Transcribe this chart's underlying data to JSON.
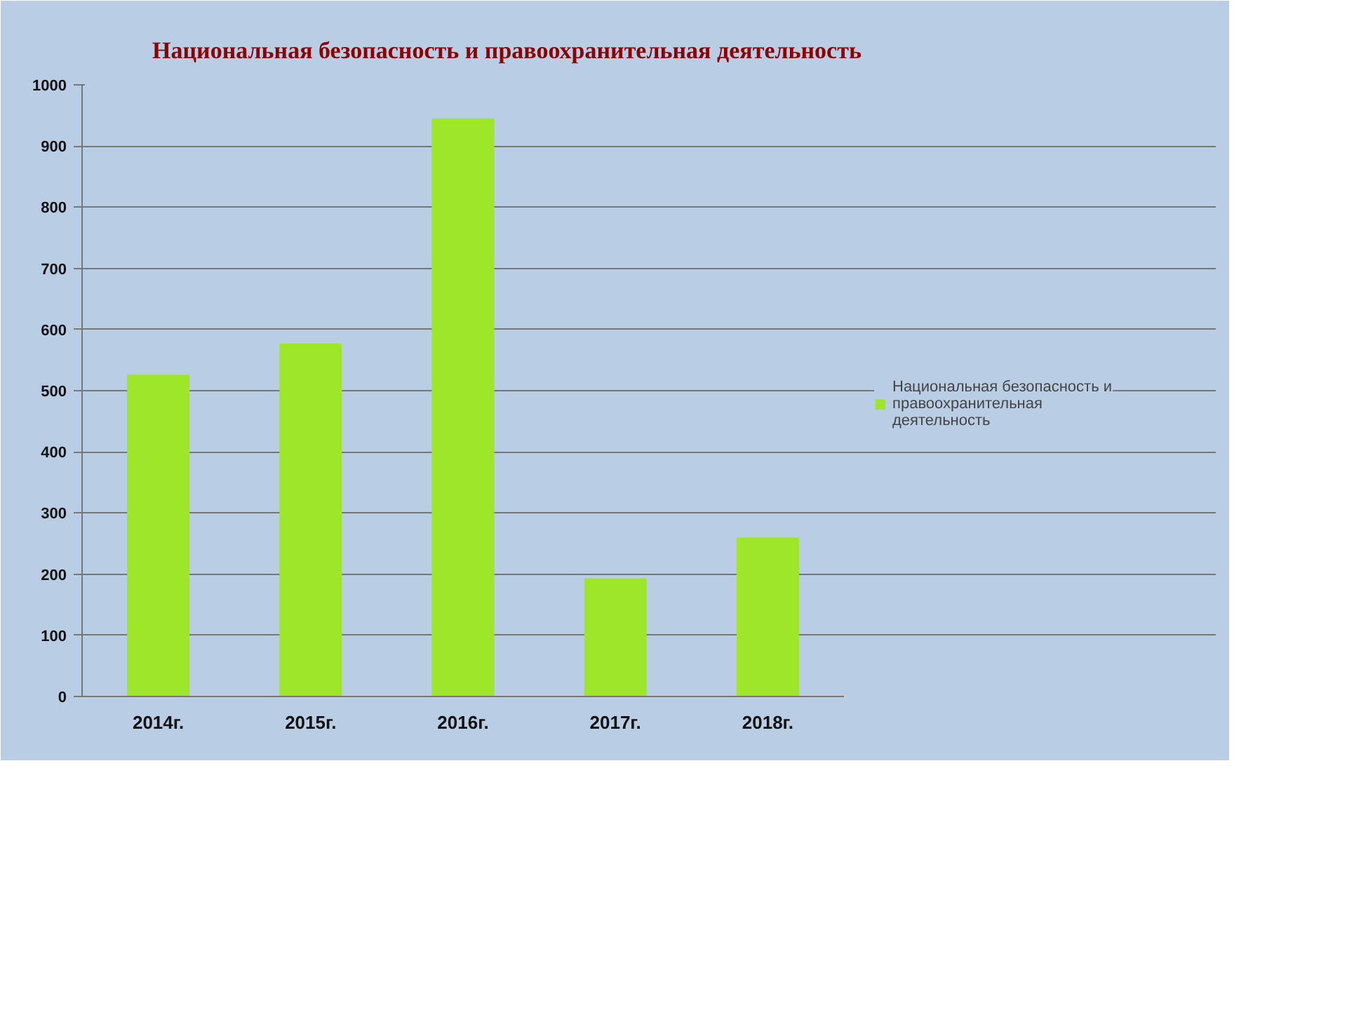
{
  "chart_data": {
    "type": "bar",
    "title": "Национальная безопасность и правоохранительная деятельность",
    "categories": [
      "2014г.",
      "2015г.",
      "2016г.",
      "2017г.",
      "2018г."
    ],
    "series": [
      {
        "name": "Национальная безопасность и правоохранительная деятельность",
        "color": "#9ee62a",
        "values": [
          525,
          576,
          944,
          192,
          259
        ]
      }
    ],
    "ylim": [
      0,
      1000
    ],
    "yticks": [
      0,
      100,
      200,
      300,
      400,
      500,
      600,
      700,
      800,
      900,
      1000
    ],
    "grid": "y",
    "legend": "right"
  }
}
